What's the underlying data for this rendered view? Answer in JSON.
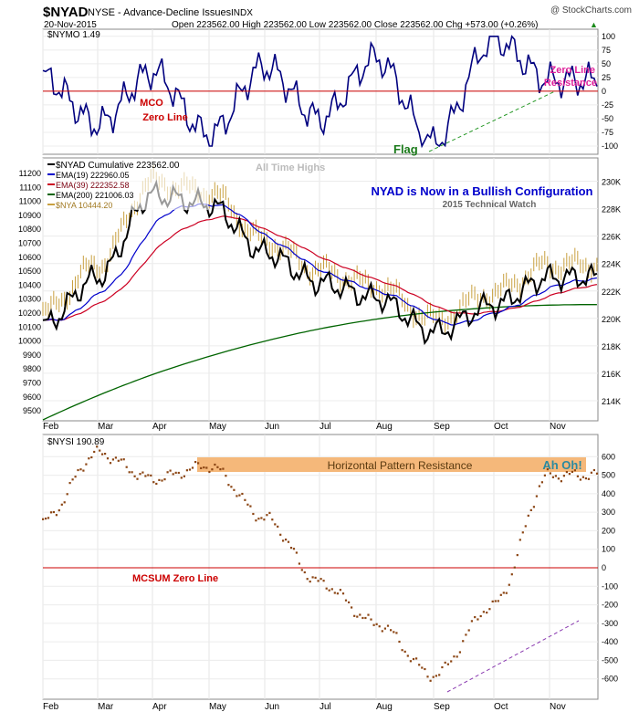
{
  "header": {
    "symbol": "$NYAD",
    "description": "NYSE - Advance-Decline Issues",
    "exchange": "INDX",
    "copyright": "@ StockCharts.com",
    "date": "20-Nov-2015",
    "ohlc": "Open 223562.00  High 223562.00  Low 223562.00  Close 223562.00  Chg +573.00 (+0.26%)",
    "up_arrow": "▲"
  },
  "colors": {
    "nymo": "#00007f",
    "zero_red": "#cc0000",
    "nyad": "#000000",
    "ema19": "#0000cc",
    "ema39": "#cc0022",
    "ema200": "#006400",
    "nya": "#c8a040",
    "nysi": "#8b4513",
    "resistance_band": "#f5b87a",
    "flag_green": "#1a7a1a",
    "magenta": "#e0209a",
    "bullish_blue": "#0000cc"
  },
  "months": [
    "Feb",
    "Mar",
    "Apr",
    "May",
    "Jun",
    "Jul",
    "Aug",
    "Sep",
    "Oct",
    "Nov"
  ],
  "chart_data": [
    {
      "type": "line",
      "name": "nymo",
      "legend": "$NYMO 1.49",
      "ylim": [
        -110,
        108
      ],
      "y_ticks": [
        100,
        75,
        50,
        25,
        0,
        -25,
        -50,
        -75,
        -100
      ],
      "x_months": [
        0,
        1,
        2,
        3,
        4,
        5,
        6,
        7,
        8,
        9
      ],
      "y_months": [
        25,
        -60,
        35,
        -80,
        45,
        -50,
        60,
        -95,
        95,
        20
      ],
      "values_approx": "daily oscillator, Feb to Nov 2015",
      "zero_line": 0,
      "annotations": {
        "mco": "MCO",
        "zero_line": "Zero Line",
        "flag": "Flag",
        "zero_line_resistance_1": "Zero Line",
        "zero_line_resistance_2": "Resistance"
      }
    },
    {
      "type": "line",
      "name": "nyad",
      "legend": {
        "nyad": "$NYAD Cumulative 223562.00",
        "ema19": "EMA(19) 222960.05",
        "ema39": "EMA(39) 222352.58",
        "ema200": "EMA(200) 221006.03",
        "nya": "$NYA 10444.20"
      },
      "left_axis_ticks": [
        "11200",
        "11100",
        "11000",
        "10900",
        "10800",
        "10700",
        "10600",
        "10500",
        "10400",
        "10300",
        "10200",
        "10100",
        "10000",
        "9900",
        "9800",
        "9700",
        "9600",
        "9500"
      ],
      "right_axis_ticks": [
        "230K",
        "228K",
        "226K",
        "224K",
        "222K",
        "220K",
        "218K",
        "216K",
        "214K"
      ],
      "right_axis_values": [
        230000,
        228000,
        226000,
        224000,
        222000,
        220000,
        218000,
        216000,
        214000
      ],
      "ylim": [
        212600,
        231500
      ],
      "x_months": [
        0,
        1,
        2,
        3,
        4,
        5,
        6,
        7,
        8,
        9
      ],
      "nyad_months": [
        219500,
        223000,
        229000,
        228300,
        224800,
        222600,
        221500,
        219000,
        221000,
        223000
      ],
      "ema200_start": 212600,
      "ema200_end": 221006.03,
      "annotations": {
        "all_time_highs": "All Time Highs",
        "title": "NYAD is Now in a Bullish Configuration",
        "subtitle": "2015 Technical Watch"
      }
    },
    {
      "type": "scatter",
      "name": "nysi",
      "legend": "$NYSI 190.89",
      "ylim": [
        -700,
        700
      ],
      "y_ticks": [
        600,
        500,
        400,
        300,
        200,
        100,
        0,
        -100,
        -200,
        -300,
        -400,
        -500,
        -600
      ],
      "x_months": [
        0,
        1,
        2,
        3,
        4,
        5,
        6,
        7,
        8,
        9
      ],
      "y_months": [
        250,
        620,
        480,
        550,
        270,
        -80,
        -300,
        -580,
        -200,
        500
      ],
      "zero_line": 0,
      "annotations": {
        "horizontal_resistance": "Horizontal Pattern Resistance",
        "ah_oh": "Ah Oh!",
        "mcsum": "MCSUM Zero Line"
      }
    }
  ]
}
